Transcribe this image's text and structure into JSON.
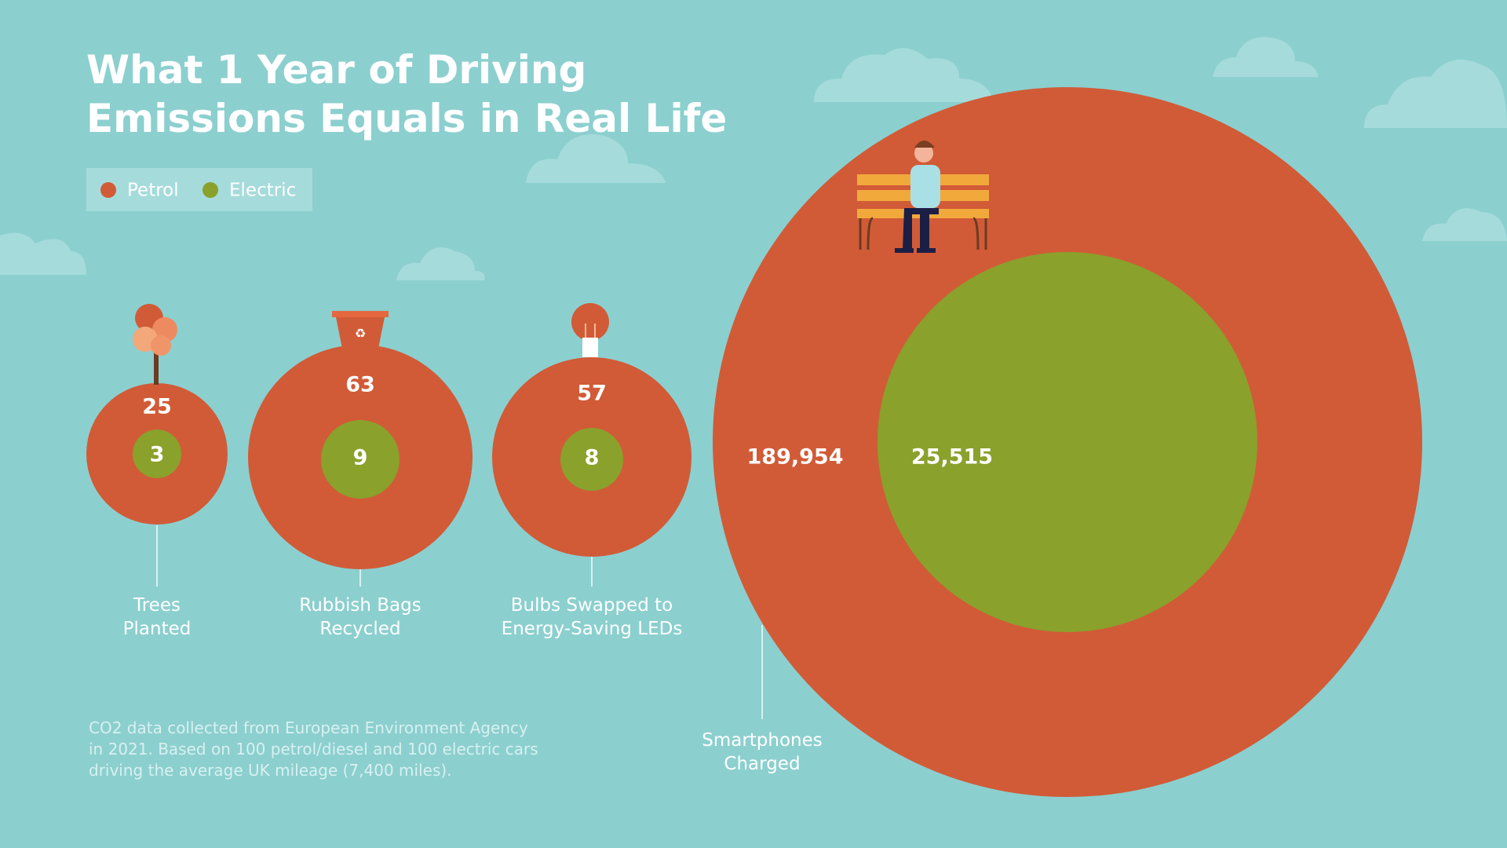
{
  "title": [
    "What 1 Year of Driving",
    "Emissions Equals in Real Life"
  ],
  "legend": [
    {
      "label": "Petrol",
      "color": "#d15b37"
    },
    {
      "label": "Electric",
      "color": "#8aa12c"
    }
  ],
  "items": [
    {
      "label": [
        "Trees",
        "Planted"
      ],
      "petrol": "25",
      "electric": "3"
    },
    {
      "label": [
        "Rubbish Bags",
        "Recycled"
      ],
      "petrol": "63",
      "electric": "9"
    },
    {
      "label": [
        "Bulbs Swapped to",
        "Energy-Saving LEDs"
      ],
      "petrol": "57",
      "electric": "8"
    },
    {
      "label": [
        "Smartphones",
        "Charged"
      ],
      "petrol": "189,954",
      "electric": "25,515"
    }
  ],
  "footnote": [
    "CO2 data collected from European Environment Agency",
    "in 2021. Based on 100 petrol/diesel and 100 electric cars",
    "driving the average UK mileage (7,400 miles)."
  ]
}
